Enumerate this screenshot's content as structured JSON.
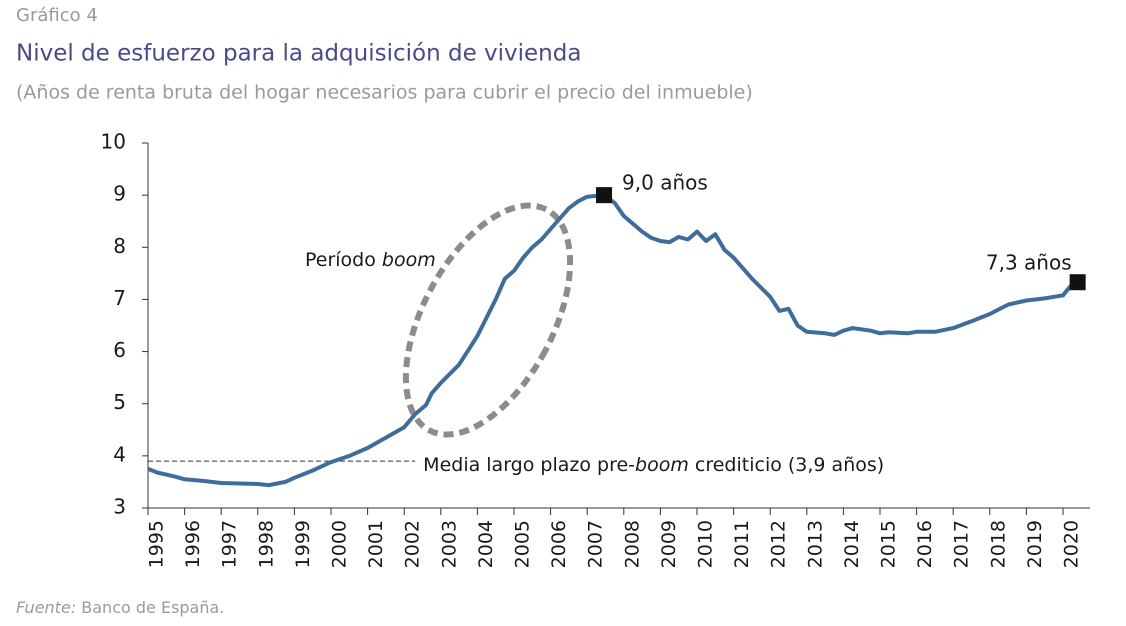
{
  "chart_data": {
    "type": "line",
    "kicker": "Gráfico 4",
    "title": "Nivel de esfuerzo para la adquisición de vivienda",
    "subtitle": "(Años de renta bruta del hogar necesarios para cubrir el precio del inmueble)",
    "source": [
      "Fuente:",
      " Banco de España."
    ],
    "color": "#3e6d9c",
    "x": [
      1995.0,
      1995.25,
      1995.75,
      1996.0,
      1996.5,
      1997.0,
      1997.5,
      1998.0,
      1998.3,
      1998.75,
      1999.0,
      1999.5,
      2000.0,
      2000.5,
      2001.0,
      2001.5,
      2002.0,
      2002.3,
      2002.6,
      2002.75,
      2003.0,
      2003.5,
      2004.0,
      2004.5,
      2004.75,
      2005.0,
      2005.25,
      2005.5,
      2005.75,
      2006.0,
      2006.5,
      2006.75,
      2007.0,
      2007.46,
      2007.75,
      2008.0,
      2008.5,
      2008.75,
      2009.0,
      2009.25,
      2009.5,
      2009.75,
      2010.0,
      2010.25,
      2010.5,
      2010.75,
      2011.0,
      2011.5,
      2012.0,
      2012.25,
      2012.5,
      2012.75,
      2013.0,
      2013.5,
      2013.75,
      2014.0,
      2014.25,
      2014.75,
      2015.0,
      2015.25,
      2015.75,
      2016.0,
      2016.5,
      2017.0,
      2017.5,
      2018.0,
      2018.5,
      2019.0,
      2019.5,
      2020.0,
      2020.2,
      2020.4
    ],
    "values": [
      3.75,
      3.68,
      3.6,
      3.55,
      3.52,
      3.48,
      3.47,
      3.46,
      3.44,
      3.5,
      3.58,
      3.72,
      3.88,
      4.0,
      4.15,
      4.35,
      4.55,
      4.8,
      4.98,
      5.2,
      5.4,
      5.75,
      6.3,
      7.0,
      7.4,
      7.55,
      7.8,
      8.0,
      8.15,
      8.35,
      8.75,
      8.88,
      8.97,
      9.0,
      8.85,
      8.6,
      8.3,
      8.18,
      8.12,
      8.1,
      8.2,
      8.15,
      8.3,
      8.12,
      8.25,
      7.95,
      7.8,
      7.4,
      7.05,
      6.78,
      6.82,
      6.5,
      6.38,
      6.35,
      6.32,
      6.4,
      6.45,
      6.4,
      6.35,
      6.37,
      6.35,
      6.38,
      6.38,
      6.45,
      6.58,
      6.72,
      6.9,
      6.98,
      7.02,
      7.08,
      7.25,
      7.33
    ],
    "xlim": [
      1995,
      2020.74
    ],
    "xticks": [
      1995,
      1996,
      1997,
      1998,
      1999,
      2000,
      2001,
      2002,
      2003,
      2004,
      2005,
      2006,
      2007,
      2008,
      2009,
      2010,
      2011,
      2012,
      2013,
      2014,
      2015,
      2016,
      2017,
      2018,
      2019,
      2020
    ],
    "ylim": [
      3,
      10
    ],
    "yticks": [
      3,
      4,
      5,
      6,
      7,
      8,
      9,
      10
    ],
    "grid": false,
    "markers": [
      {
        "x": 2007.46,
        "y": 9.0,
        "label": "9,0 años"
      },
      {
        "x": 2020.4,
        "y": 7.33,
        "label": "7,3 años"
      }
    ],
    "reference_line": {
      "value": 3.9,
      "x_end": 2002.3,
      "label": [
        "Media largo plazo pre-",
        "boom",
        " crediticio (3,9 años)"
      ]
    },
    "boom_label": [
      "Período ",
      "boom"
    ]
  }
}
